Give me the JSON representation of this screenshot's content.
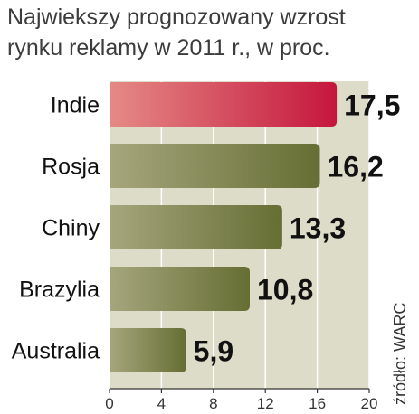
{
  "title": "Najwiekszy prognozowany wzrost rynku reklamy w 2011 r., w proc.",
  "source": "źródło: WARC",
  "colors": {
    "highlight_bar": "#d2203e",
    "highlight_value": "#c4173a",
    "bar": "#6e7738",
    "plot_bg": "#dcdcc8"
  },
  "chart_data": {
    "type": "bar",
    "orientation": "horizontal",
    "title": "Najwiekszy prognozowany wzrost rynku reklamy w 2011 r., w proc.",
    "categories": [
      "Indie",
      "Rosja",
      "Chiny",
      "Brazylia",
      "Australia"
    ],
    "values": [
      17.5,
      16.2,
      13.3,
      10.8,
      5.9
    ],
    "value_labels": [
      "17,5",
      "16,2",
      "13,3",
      "10,8",
      "5,9"
    ],
    "highlight_index": 0,
    "xlim": [
      0,
      20
    ],
    "xticks": [
      0,
      4,
      8,
      12,
      16,
      20
    ],
    "grid": true,
    "legend": "none"
  }
}
